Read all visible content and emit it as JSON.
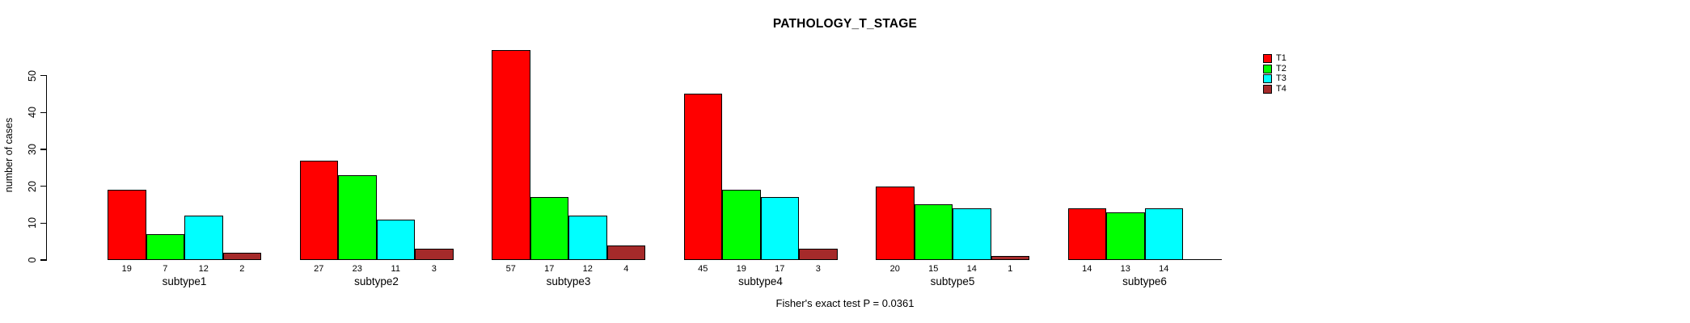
{
  "chart_data": {
    "type": "bar",
    "title": "PATHOLOGY_T_STAGE",
    "xlabel": "",
    "ylabel": "number of cases",
    "ylim": [
      0,
      57
    ],
    "yticks": [
      0,
      10,
      20,
      30,
      40,
      50
    ],
    "categories": [
      "subtype1",
      "subtype2",
      "subtype3",
      "subtype4",
      "subtype5",
      "subtype6"
    ],
    "series": [
      {
        "name": "T1",
        "color": "#FF0000",
        "values": [
          19,
          27,
          57,
          45,
          20,
          14
        ]
      },
      {
        "name": "T2",
        "color": "#00FF00",
        "values": [
          7,
          23,
          17,
          19,
          15,
          13
        ]
      },
      {
        "name": "T3",
        "color": "#00FFFF",
        "values": [
          12,
          11,
          12,
          17,
          14,
          14
        ]
      },
      {
        "name": "T4",
        "color": "#A52A2A",
        "values": [
          2,
          3,
          4,
          3,
          1,
          0
        ]
      }
    ],
    "bar_value_labels": true,
    "legend_position": "right-top",
    "grid": false,
    "annotation": "Fisher's exact test P = 0.0361",
    "background": "#FFFFFF",
    "axis_color": "#000000",
    "text_color": "#000000"
  }
}
